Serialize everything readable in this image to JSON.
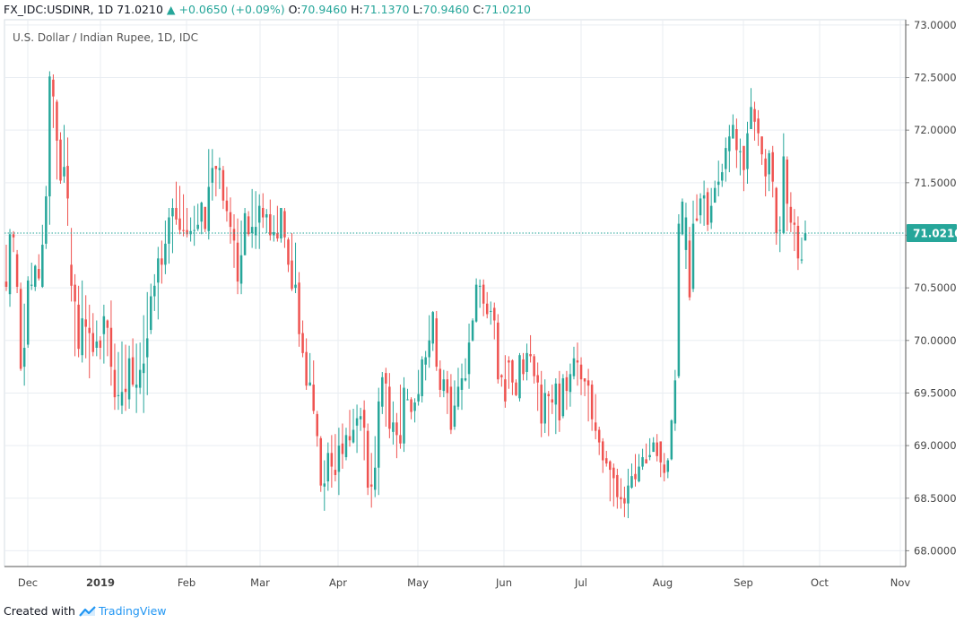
{
  "header": {
    "symbol": "FX_IDC:USDINR, 1D",
    "last": "71.0210",
    "change_arrow": "▲",
    "change": "+0.0650 (+0.09%)",
    "open_label": "O:",
    "open": "70.9460",
    "high_label": "H:",
    "high": "71.1370",
    "low_label": "L:",
    "low": "70.9460",
    "close_label": "C:",
    "close": "71.0210"
  },
  "footer": {
    "created_with": "Created with",
    "brand": "TradingView"
  },
  "colors": {
    "up": "#26a69a",
    "down": "#ef5350",
    "grid": "#e9edf2",
    "axis": "#787b86",
    "price_tag": "#26a69a"
  },
  "chart_data": {
    "type": "candlestick",
    "title": "U.S. Dollar / Indian Rupee, 1D, IDC",
    "ylim": [
      67.85,
      73.05
    ],
    "y_ticks": [
      "73.0000",
      "72.5000",
      "72.0000",
      "71.5000",
      "71.0000",
      "70.5000",
      "70.0000",
      "69.5000",
      "69.0000",
      "68.5000",
      "68.0000"
    ],
    "x_ticks": [
      "Dec",
      "2019",
      "Feb",
      "Mar",
      "Apr",
      "May",
      "Jun",
      "Jul",
      "Aug",
      "Sep",
      "Oct",
      "Nov"
    ],
    "last_price_label": "71.0210",
    "last_price": 71.021,
    "candles": [
      [
        70.56,
        70.51,
        70.91,
        70.47
      ],
      [
        70.44,
        71.01,
        71.06,
        70.32
      ],
      [
        71.01,
        70.98,
        71.04,
        70.84
      ],
      [
        70.82,
        70.51,
        70.86,
        70.45
      ],
      [
        70.49,
        69.73,
        70.55,
        69.71
      ],
      [
        69.75,
        69.93,
        70.35,
        69.57
      ],
      [
        69.96,
        70.57,
        70.61,
        69.93
      ],
      [
        70.52,
        70.53,
        70.74,
        70.48
      ],
      [
        70.51,
        70.71,
        70.72,
        70.47
      ],
      [
        70.68,
        70.59,
        70.82,
        70.57
      ],
      [
        70.51,
        70.91,
        71.1,
        70.5
      ],
      [
        70.92,
        71.37,
        71.47,
        70.87
      ],
      [
        71.37,
        72.51,
        72.56,
        71.1
      ],
      [
        72.48,
        72.32,
        72.53,
        72.02
      ],
      [
        72.27,
        71.9,
        72.29,
        71.53
      ],
      [
        71.91,
        71.52,
        71.98,
        71.49
      ],
      [
        71.56,
        71.65,
        72.05,
        71.5
      ],
      [
        71.66,
        71.35,
        71.93,
        71.09
      ],
      [
        70.72,
        70.52,
        71.07,
        70.37
      ],
      [
        70.53,
        70.37,
        70.63,
        69.85
      ],
      [
        70.34,
        69.92,
        70.52,
        69.84
      ],
      [
        69.86,
        70.21,
        70.57,
        69.79
      ],
      [
        70.2,
        70.13,
        70.43,
        69.83
      ],
      [
        70.12,
        70.07,
        70.34,
        69.64
      ],
      [
        70.07,
        69.89,
        70.26,
        69.85
      ],
      [
        69.93,
        69.99,
        70.19,
        69.85
      ],
      [
        70.0,
        69.93,
        70.04,
        69.82
      ],
      [
        70.06,
        70.23,
        70.34,
        69.78
      ],
      [
        70.19,
        70.12,
        70.2,
        69.85
      ],
      [
        70.12,
        69.75,
        70.38,
        69.57
      ],
      [
        69.72,
        69.46,
        69.97,
        69.34
      ],
      [
        69.47,
        69.48,
        69.89,
        69.34
      ],
      [
        69.38,
        69.51,
        69.99,
        69.3
      ],
      [
        69.54,
        69.51,
        69.96,
        69.33
      ],
      [
        69.44,
        69.83,
        69.95,
        69.35
      ],
      [
        69.84,
        69.58,
        70.02,
        69.56
      ],
      [
        69.55,
        69.58,
        69.97,
        69.31
      ],
      [
        69.55,
        69.72,
        69.98,
        69.49
      ],
      [
        69.69,
        69.78,
        70.24,
        69.31
      ],
      [
        69.84,
        70.02,
        70.46,
        69.48
      ],
      [
        70.1,
        70.42,
        70.54,
        70.06
      ],
      [
        70.42,
        70.52,
        70.63,
        70.28
      ],
      [
        70.55,
        70.78,
        70.89,
        70.2
      ],
      [
        70.78,
        70.72,
        70.95,
        70.54
      ],
      [
        70.72,
        70.92,
        71.14,
        70.63
      ],
      [
        70.92,
        71.17,
        71.26,
        70.73
      ],
      [
        71.18,
        71.26,
        71.35,
        70.83
      ],
      [
        71.26,
        71.15,
        71.51,
        71.1
      ],
      [
        71.16,
        71.05,
        71.47,
        71.01
      ],
      [
        71.05,
        71.04,
        71.39,
        70.99
      ],
      [
        71.05,
        71.01,
        71.26,
        70.98
      ],
      [
        71.01,
        71.04,
        71.17,
        70.94
      ],
      [
        71.05,
        71.05,
        71.28,
        70.9
      ],
      [
        71.06,
        71.1,
        71.3,
        71.04
      ],
      [
        71.13,
        71.31,
        71.32,
        71.01
      ],
      [
        71.27,
        71.06,
        71.27,
        71.03
      ],
      [
        71.04,
        71.46,
        71.82,
        70.96
      ],
      [
        71.5,
        71.64,
        71.82,
        71.33
      ],
      [
        71.66,
        71.63,
        71.66,
        71.37
      ],
      [
        71.62,
        71.64,
        71.74,
        71.44
      ],
      [
        71.62,
        71.33,
        71.66,
        71.25
      ],
      [
        71.33,
        71.23,
        71.46,
        71.13
      ],
      [
        71.22,
        71.08,
        71.36,
        70.92
      ],
      [
        71.06,
        70.95,
        71.2,
        70.69
      ],
      [
        70.93,
        70.56,
        71.16,
        70.44
      ],
      [
        70.54,
        70.81,
        71.14,
        70.44
      ],
      [
        70.81,
        71.21,
        71.26,
        71.16
      ],
      [
        71.18,
        71.01,
        71.23,
        70.99
      ],
      [
        71.02,
        71.08,
        71.44,
        70.88
      ],
      [
        71.0,
        71.08,
        71.42,
        70.87
      ],
      [
        71.12,
        71.28,
        71.39,
        70.87
      ],
      [
        71.26,
        71.17,
        71.4,
        71.07
      ],
      [
        71.17,
        71.2,
        71.25,
        71.02
      ],
      [
        71.2,
        71.0,
        71.34,
        70.95
      ],
      [
        71.0,
        71.03,
        71.19,
        70.94
      ],
      [
        71.02,
        70.97,
        71.28,
        70.94
      ],
      [
        70.97,
        71.26,
        71.26,
        70.93
      ],
      [
        71.23,
        70.98,
        71.26,
        70.88
      ],
      [
        70.96,
        70.72,
        70.98,
        70.65
      ],
      [
        70.76,
        70.49,
        71.02,
        70.47
      ],
      [
        70.5,
        70.53,
        70.93,
        70.45
      ],
      [
        70.55,
        70.06,
        70.65,
        69.94
      ],
      [
        70.07,
        69.88,
        70.19,
        69.84
      ],
      [
        69.89,
        69.57,
        70.02,
        69.53
      ],
      [
        69.57,
        69.6,
        69.88,
        69.57
      ],
      [
        69.58,
        69.33,
        69.81,
        69.3
      ],
      [
        69.3,
        69.09,
        69.33,
        68.99
      ],
      [
        69.07,
        68.62,
        69.09,
        68.56
      ],
      [
        68.61,
        68.64,
        68.86,
        68.38
      ],
      [
        68.66,
        68.93,
        69.03,
        68.57
      ],
      [
        68.93,
        68.8,
        69.1,
        68.6
      ],
      [
        68.77,
        68.72,
        69.11,
        68.66
      ],
      [
        68.75,
        69.0,
        69.17,
        68.53
      ],
      [
        69.02,
        68.92,
        69.21,
        68.78
      ],
      [
        68.89,
        69.1,
        69.17,
        68.86
      ],
      [
        69.09,
        69.05,
        69.34,
        68.99
      ],
      [
        69.03,
        69.15,
        69.35,
        69.02
      ],
      [
        69.19,
        69.26,
        69.39,
        68.93
      ],
      [
        69.25,
        69.28,
        69.36,
        69.14
      ],
      [
        69.34,
        69.17,
        69.43,
        68.86
      ],
      [
        69.14,
        68.6,
        69.21,
        68.53
      ],
      [
        68.63,
        68.61,
        68.93,
        68.41
      ],
      [
        68.58,
        68.79,
        69.09,
        68.51
      ],
      [
        68.79,
        69.42,
        69.55,
        68.53
      ],
      [
        69.37,
        69.65,
        69.7,
        69.3
      ],
      [
        69.69,
        69.59,
        69.74,
        69.18
      ],
      [
        69.56,
        69.16,
        69.69,
        69.07
      ],
      [
        69.13,
        69.22,
        69.42,
        69.01
      ],
      [
        69.22,
        69.1,
        69.31,
        68.88
      ],
      [
        69.1,
        69.02,
        69.58,
        68.97
      ],
      [
        69.02,
        69.55,
        69.65,
        68.94
      ],
      [
        69.44,
        69.44,
        69.54,
        69.43
      ],
      [
        69.44,
        69.32,
        69.46,
        69.25
      ],
      [
        69.33,
        69.41,
        69.45,
        69.22
      ],
      [
        69.42,
        69.49,
        69.72,
        69.38
      ],
      [
        69.47,
        69.82,
        69.85,
        69.41
      ],
      [
        69.77,
        69.84,
        69.9,
        69.62
      ],
      [
        69.84,
        70.0,
        70.24,
        69.74
      ],
      [
        69.97,
        70.27,
        70.28,
        69.9
      ],
      [
        70.21,
        69.75,
        70.28,
        69.71
      ],
      [
        69.73,
        69.53,
        69.81,
        69.46
      ],
      [
        69.52,
        69.63,
        69.72,
        69.46
      ],
      [
        69.63,
        69.5,
        69.71,
        69.3
      ],
      [
        69.56,
        69.15,
        69.68,
        69.11
      ],
      [
        69.18,
        69.38,
        69.62,
        69.15
      ],
      [
        69.37,
        69.56,
        69.74,
        69.34
      ],
      [
        69.53,
        69.64,
        69.78,
        69.34
      ],
      [
        69.62,
        69.64,
        69.83,
        69.61
      ],
      [
        69.68,
        69.98,
        70.16,
        69.54
      ],
      [
        70.0,
        70.19,
        70.21,
        69.99
      ],
      [
        70.18,
        70.53,
        70.59,
        70.17
      ],
      [
        70.51,
        70.52,
        70.58,
        70.31
      ],
      [
        70.53,
        70.35,
        70.58,
        70.23
      ],
      [
        70.35,
        70.25,
        70.46,
        70.21
      ],
      [
        70.28,
        70.28,
        70.37,
        70.15
      ],
      [
        70.31,
        70.19,
        70.36,
        70.01
      ],
      [
        70.17,
        69.63,
        70.25,
        69.59
      ],
      [
        69.67,
        69.65,
        69.68,
        69.56
      ],
      [
        69.63,
        69.42,
        69.86,
        69.36
      ],
      [
        69.81,
        69.79,
        69.85,
        69.54
      ],
      [
        69.81,
        69.6,
        69.82,
        69.48
      ],
      [
        69.6,
        69.48,
        69.63,
        69.47
      ],
      [
        69.45,
        69.86,
        69.88,
        69.42
      ],
      [
        69.82,
        69.68,
        69.88,
        69.62
      ],
      [
        69.7,
        69.88,
        69.97,
        69.62
      ],
      [
        69.87,
        69.85,
        70.05,
        69.79
      ],
      [
        69.85,
        69.66,
        69.87,
        69.59
      ],
      [
        69.67,
        69.6,
        69.79,
        69.33
      ],
      [
        69.58,
        69.21,
        69.71,
        69.08
      ],
      [
        69.21,
        69.5,
        69.63,
        69.12
      ],
      [
        69.49,
        69.47,
        69.52,
        69.09
      ],
      [
        69.44,
        69.41,
        69.58,
        69.3
      ],
      [
        69.39,
        69.59,
        69.64,
        69.11
      ],
      [
        69.59,
        69.24,
        69.71,
        69.13
      ],
      [
        69.28,
        69.64,
        69.68,
        69.26
      ],
      [
        69.65,
        69.52,
        69.71,
        69.34
      ],
      [
        69.51,
        69.68,
        69.78,
        69.37
      ],
      [
        69.66,
        69.83,
        69.94,
        69.63
      ],
      [
        69.81,
        69.79,
        69.98,
        69.57
      ],
      [
        69.77,
        69.63,
        69.84,
        69.48
      ],
      [
        69.64,
        69.61,
        69.62,
        69.47
      ],
      [
        69.62,
        69.57,
        69.73,
        69.23
      ],
      [
        69.58,
        69.25,
        69.62,
        69.14
      ],
      [
        69.22,
        69.14,
        69.49,
        69.06
      ],
      [
        69.15,
        69.03,
        69.18,
        68.91
      ],
      [
        69.04,
        68.86,
        69.07,
        68.74
      ],
      [
        68.88,
        68.83,
        68.95,
        68.8
      ],
      [
        68.85,
        68.77,
        68.86,
        68.47
      ],
      [
        68.79,
        68.69,
        68.83,
        68.42
      ],
      [
        68.72,
        68.51,
        68.78,
        68.4
      ],
      [
        68.51,
        68.49,
        68.69,
        68.4
      ],
      [
        68.5,
        68.45,
        68.61,
        68.32
      ],
      [
        68.45,
        68.62,
        68.78,
        68.31
      ],
      [
        68.6,
        68.71,
        68.83,
        68.59
      ],
      [
        68.73,
        68.68,
        68.92,
        68.61
      ],
      [
        68.66,
        68.8,
        68.92,
        68.65
      ],
      [
        68.8,
        68.89,
        68.97,
        68.77
      ],
      [
        68.87,
        68.83,
        69.02,
        68.85
      ],
      [
        68.89,
        68.91,
        69.07,
        68.86
      ],
      [
        68.94,
        69.03,
        69.08,
        68.96
      ],
      [
        69.03,
        68.9,
        69.11,
        68.85
      ],
      [
        69.04,
        68.84,
        68.96,
        68.7
      ],
      [
        68.82,
        68.74,
        68.93,
        68.66
      ],
      [
        68.75,
        68.86,
        68.88,
        68.69
      ],
      [
        68.87,
        69.24,
        69.25,
        68.86
      ],
      [
        69.21,
        69.62,
        69.72,
        69.14
      ],
      [
        69.66,
        71.11,
        71.2,
        69.64
      ],
      [
        71.01,
        71.32,
        71.35,
        71.0
      ],
      [
        70.86,
        71.17,
        71.31,
        70.68
      ],
      [
        70.95,
        70.41,
        71.08,
        70.38
      ],
      [
        70.49,
        71.11,
        71.33,
        70.46
      ],
      [
        71.16,
        71.14,
        71.39,
        71.13
      ],
      [
        71.19,
        71.35,
        71.4,
        71.11
      ],
      [
        71.35,
        71.38,
        71.52,
        71.09
      ],
      [
        71.41,
        71.1,
        71.45,
        71.04
      ],
      [
        71.12,
        71.28,
        71.45,
        71.06
      ],
      [
        71.31,
        71.45,
        71.52,
        71.34
      ],
      [
        71.48,
        71.51,
        71.71,
        71.37
      ],
      [
        71.52,
        71.6,
        71.68,
        71.46
      ],
      [
        71.63,
        71.83,
        71.93,
        71.51
      ],
      [
        71.8,
        71.94,
        72.05,
        71.6
      ],
      [
        71.92,
        72.05,
        72.15,
        71.92
      ],
      [
        72.01,
        71.81,
        72.11,
        71.64
      ],
      [
        71.79,
        71.8,
        71.92,
        71.57
      ],
      [
        71.85,
        71.62,
        71.8,
        71.42
      ],
      [
        71.63,
        71.97,
        72.08,
        71.49
      ],
      [
        72.01,
        72.22,
        72.4,
        72.04
      ],
      [
        72.2,
        72.08,
        72.27,
        71.9
      ],
      [
        72.11,
        71.97,
        72.19,
        71.85
      ],
      [
        71.94,
        71.77,
        71.94,
        71.67
      ],
      [
        71.73,
        71.56,
        71.82,
        71.37
      ],
      [
        71.58,
        71.78,
        71.81,
        71.42
      ],
      [
        71.79,
        71.51,
        71.85,
        71.36
      ],
      [
        71.45,
        71.02,
        71.46,
        70.91
      ],
      [
        71.05,
        71.05,
        71.18,
        70.84
      ],
      [
        71.02,
        71.75,
        71.97,
        71.01
      ],
      [
        71.72,
        71.3,
        71.75,
        71.04
      ],
      [
        71.27,
        71.12,
        71.41,
        71.03
      ],
      [
        71.12,
        71.1,
        71.25,
        70.85
      ],
      [
        71.09,
        70.78,
        71.18,
        70.67
      ],
      [
        70.76,
        70.77,
        70.98,
        70.73
      ],
      [
        70.95,
        71.02,
        71.14,
        70.95
      ]
    ]
  }
}
